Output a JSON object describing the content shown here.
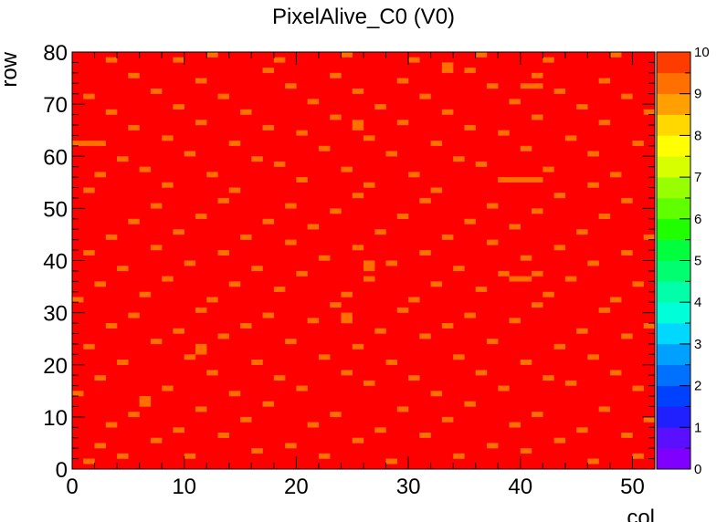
{
  "chart_data": {
    "type": "heatmap",
    "title": "PixelAlive_C0 (V0)",
    "xlabel": "col",
    "ylabel": "row",
    "xlim": [
      0,
      52
    ],
    "ylim": [
      0,
      80
    ],
    "zlim": [
      0,
      10
    ],
    "x_ticks": [
      "0",
      "10",
      "20",
      "30",
      "40",
      "50"
    ],
    "y_ticks": [
      "0",
      "10",
      "20",
      "30",
      "40",
      "50",
      "60",
      "70",
      "80"
    ],
    "z_ticks": [
      "0",
      "1",
      "2",
      "3",
      "4",
      "5",
      "6",
      "7",
      "8",
      "9",
      "10"
    ],
    "n_cols": 52,
    "n_rows": 80,
    "default_value": 10,
    "palette": [
      "#8000ff",
      "#5a10ff",
      "#2020ff",
      "#0040ff",
      "#0070ff",
      "#00a0ff",
      "#00d8ff",
      "#00ffd8",
      "#00ffa8",
      "#00ff70",
      "#00ff3c",
      "#20ff00",
      "#60ff00",
      "#98ff00",
      "#d8ff00",
      "#ffff00",
      "#ffd800",
      "#ffa000",
      "#ff7000",
      "#ff3c00",
      "#ff0000"
    ],
    "cells_value_9": [
      [
        1,
        1
      ],
      [
        4,
        2
      ],
      [
        10,
        2
      ],
      [
        16,
        3
      ],
      [
        22,
        2
      ],
      [
        28,
        1
      ],
      [
        34,
        2
      ],
      [
        40,
        3
      ],
      [
        46,
        1
      ],
      [
        50,
        2
      ],
      [
        2,
        4
      ],
      [
        7,
        5
      ],
      [
        13,
        6
      ],
      [
        19,
        4
      ],
      [
        25,
        5
      ],
      [
        31,
        6
      ],
      [
        37,
        4
      ],
      [
        43,
        5
      ],
      [
        49,
        6
      ],
      [
        3,
        8
      ],
      [
        9,
        7
      ],
      [
        15,
        9
      ],
      [
        21,
        8
      ],
      [
        27,
        7
      ],
      [
        33,
        9
      ],
      [
        39,
        8
      ],
      [
        45,
        7
      ],
      [
        51,
        9
      ],
      [
        5,
        10
      ],
      [
        11,
        11
      ],
      [
        17,
        12
      ],
      [
        23,
        10
      ],
      [
        29,
        11
      ],
      [
        35,
        12
      ],
      [
        41,
        10
      ],
      [
        47,
        11
      ],
      [
        6,
        12
      ],
      [
        6,
        13
      ],
      [
        0,
        14
      ],
      [
        8,
        15
      ],
      [
        14,
        14
      ],
      [
        20,
        15
      ],
      [
        26,
        16
      ],
      [
        32,
        14
      ],
      [
        38,
        15
      ],
      [
        44,
        16
      ],
      [
        50,
        15
      ],
      [
        2,
        17
      ],
      [
        12,
        18
      ],
      [
        18,
        17
      ],
      [
        24,
        18
      ],
      [
        30,
        17
      ],
      [
        36,
        18
      ],
      [
        42,
        17
      ],
      [
        48,
        18
      ],
      [
        4,
        20
      ],
      [
        10,
        21
      ],
      [
        16,
        20
      ],
      [
        22,
        21
      ],
      [
        28,
        20
      ],
      [
        34,
        21
      ],
      [
        40,
        20
      ],
      [
        46,
        21
      ],
      [
        11,
        22
      ],
      [
        11,
        23
      ],
      [
        1,
        23
      ],
      [
        7,
        24
      ],
      [
        13,
        25
      ],
      [
        19,
        24
      ],
      [
        25,
        23
      ],
      [
        31,
        25
      ],
      [
        37,
        24
      ],
      [
        43,
        23
      ],
      [
        49,
        25
      ],
      [
        3,
        27
      ],
      [
        9,
        26
      ],
      [
        15,
        27
      ],
      [
        21,
        28
      ],
      [
        27,
        26
      ],
      [
        33,
        27
      ],
      [
        39,
        28
      ],
      [
        45,
        26
      ],
      [
        51,
        27
      ],
      [
        5,
        29
      ],
      [
        11,
        30
      ],
      [
        17,
        29
      ],
      [
        23,
        31
      ],
      [
        29,
        30
      ],
      [
        35,
        29
      ],
      [
        41,
        31
      ],
      [
        47,
        30
      ],
      [
        24,
        28
      ],
      [
        24,
        29
      ],
      [
        0,
        32
      ],
      [
        6,
        33
      ],
      [
        12,
        32
      ],
      [
        18,
        34
      ],
      [
        24,
        33
      ],
      [
        30,
        32
      ],
      [
        36,
        34
      ],
      [
        42,
        33
      ],
      [
        48,
        32
      ],
      [
        2,
        35
      ],
      [
        8,
        36
      ],
      [
        14,
        35
      ],
      [
        20,
        37
      ],
      [
        26,
        36
      ],
      [
        32,
        35
      ],
      [
        38,
        37
      ],
      [
        44,
        36
      ],
      [
        50,
        35
      ],
      [
        39,
        36
      ],
      [
        40,
        36
      ],
      [
        41,
        37
      ],
      [
        4,
        38
      ],
      [
        10,
        39
      ],
      [
        16,
        38
      ],
      [
        22,
        40
      ],
      [
        28,
        39
      ],
      [
        34,
        38
      ],
      [
        40,
        40
      ],
      [
        46,
        39
      ],
      [
        26,
        39
      ],
      [
        26,
        38
      ],
      [
        1,
        41
      ],
      [
        7,
        42
      ],
      [
        13,
        41
      ],
      [
        19,
        43
      ],
      [
        25,
        42
      ],
      [
        31,
        41
      ],
      [
        37,
        43
      ],
      [
        43,
        42
      ],
      [
        49,
        41
      ],
      [
        3,
        44
      ],
      [
        9,
        45
      ],
      [
        15,
        44
      ],
      [
        21,
        46
      ],
      [
        27,
        45
      ],
      [
        33,
        44
      ],
      [
        39,
        46
      ],
      [
        45,
        45
      ],
      [
        51,
        44
      ],
      [
        5,
        47
      ],
      [
        11,
        48
      ],
      [
        17,
        47
      ],
      [
        23,
        49
      ],
      [
        29,
        48
      ],
      [
        35,
        47
      ],
      [
        41,
        49
      ],
      [
        47,
        48
      ],
      [
        7,
        50
      ],
      [
        13,
        51
      ],
      [
        19,
        50
      ],
      [
        25,
        52
      ],
      [
        31,
        51
      ],
      [
        37,
        50
      ],
      [
        43,
        52
      ],
      [
        49,
        51
      ],
      [
        1,
        53
      ],
      [
        8,
        54
      ],
      [
        14,
        53
      ],
      [
        20,
        55
      ],
      [
        26,
        54
      ],
      [
        32,
        53
      ],
      [
        38,
        55
      ],
      [
        39,
        55
      ],
      [
        40,
        55
      ],
      [
        41,
        55
      ],
      [
        46,
        54
      ],
      [
        2,
        56
      ],
      [
        6,
        57
      ],
      [
        12,
        56
      ],
      [
        18,
        58
      ],
      [
        24,
        57
      ],
      [
        30,
        56
      ],
      [
        36,
        58
      ],
      [
        42,
        57
      ],
      [
        48,
        56
      ],
      [
        4,
        59
      ],
      [
        10,
        60
      ],
      [
        16,
        59
      ],
      [
        22,
        61
      ],
      [
        28,
        60
      ],
      [
        34,
        59
      ],
      [
        40,
        61
      ],
      [
        46,
        60
      ],
      [
        0,
        62
      ],
      [
        1,
        62
      ],
      [
        2,
        62
      ],
      [
        8,
        63
      ],
      [
        14,
        62
      ],
      [
        20,
        64
      ],
      [
        26,
        63
      ],
      [
        32,
        62
      ],
      [
        38,
        64
      ],
      [
        44,
        63
      ],
      [
        50,
        62
      ],
      [
        25,
        65
      ],
      [
        25,
        66
      ],
      [
        5,
        65
      ],
      [
        11,
        66
      ],
      [
        17,
        65
      ],
      [
        23,
        67
      ],
      [
        29,
        66
      ],
      [
        35,
        65
      ],
      [
        41,
        67
      ],
      [
        47,
        66
      ],
      [
        3,
        68
      ],
      [
        9,
        69
      ],
      [
        15,
        68
      ],
      [
        21,
        70
      ],
      [
        27,
        69
      ],
      [
        33,
        68
      ],
      [
        39,
        70
      ],
      [
        45,
        69
      ],
      [
        51,
        68
      ],
      [
        1,
        71
      ],
      [
        7,
        72
      ],
      [
        13,
        71
      ],
      [
        19,
        73
      ],
      [
        25,
        72
      ],
      [
        31,
        71
      ],
      [
        37,
        73
      ],
      [
        43,
        72
      ],
      [
        49,
        71
      ],
      [
        40,
        73
      ],
      [
        41,
        73
      ],
      [
        5,
        75
      ],
      [
        11,
        74
      ],
      [
        17,
        76
      ],
      [
        23,
        75
      ],
      [
        29,
        74
      ],
      [
        35,
        76
      ],
      [
        41,
        75
      ],
      [
        47,
        74
      ],
      [
        33,
        76
      ],
      [
        33,
        77
      ],
      [
        3,
        78
      ],
      [
        9,
        78
      ],
      [
        12,
        79
      ],
      [
        18,
        78
      ],
      [
        24,
        79
      ],
      [
        30,
        78
      ],
      [
        36,
        79
      ],
      [
        42,
        78
      ],
      [
        48,
        79
      ]
    ]
  }
}
